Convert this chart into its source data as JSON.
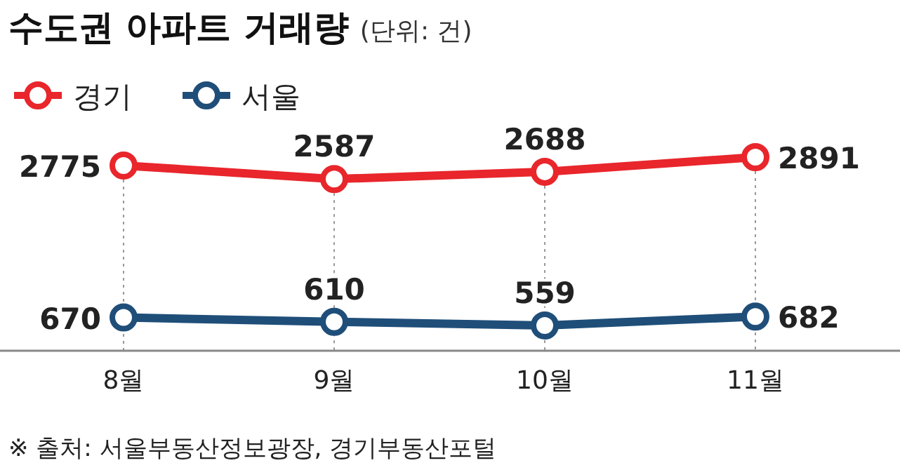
{
  "chart_data": {
    "type": "line",
    "title": "수도권 아파트 거래량",
    "subtitle": "(단위: 건)",
    "categories": [
      "8월",
      "9월",
      "10월",
      "11월"
    ],
    "series": [
      {
        "name": "경기",
        "color": "#e8262b",
        "values": [
          2775,
          2587,
          2688,
          2891
        ]
      },
      {
        "name": "서울",
        "color": "#1f4e79",
        "values": [
          670,
          610,
          559,
          682
        ]
      }
    ],
    "tick_labels": "x",
    "data_labels": true,
    "marker": "circle",
    "line_style": "solid",
    "grid": "x",
    "legend": "top left",
    "annotations": [
      "※ 출처: 서울부동산정보광장, 경기부동산포털"
    ]
  }
}
